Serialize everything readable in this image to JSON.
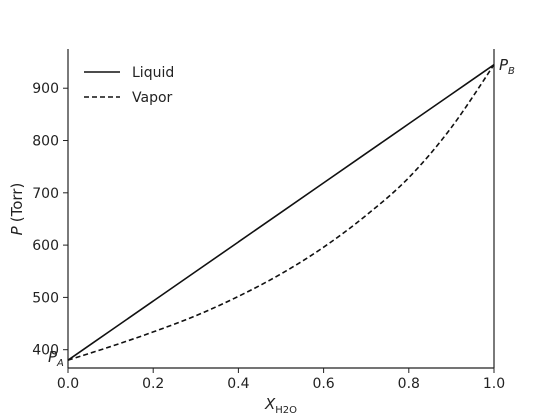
{
  "chart_data": {
    "type": "line",
    "xlabel": "X",
    "xlabel_sub": "H2O",
    "ylabel_italic": "P",
    "ylabel_unit": "(Torr)",
    "xlim": [
      0.0,
      1.0
    ],
    "ylim": [
      365,
      975
    ],
    "xticks": [
      "0.0",
      "0.2",
      "0.4",
      "0.6",
      "0.8",
      "1.0"
    ],
    "yticks": [
      "400",
      "500",
      "600",
      "700",
      "800",
      "900"
    ],
    "legend_position": "top-left",
    "annotations": [
      {
        "main": "P",
        "sub": "A"
      },
      {
        "main": "P",
        "sub": "B"
      }
    ],
    "series": [
      {
        "name": "Liquid",
        "style": "solid",
        "x": [
          0.0,
          0.1,
          0.2,
          0.3,
          0.4,
          0.5,
          0.6,
          0.7,
          0.8,
          0.9,
          1.0
        ],
        "y": [
          380,
          436.5,
          493,
          549.5,
          606,
          662.5,
          719,
          775.5,
          832,
          888.5,
          945
        ]
      },
      {
        "name": "Vapor",
        "style": "dashed",
        "x": [
          0.0,
          0.1,
          0.2,
          0.3,
          0.4,
          0.5,
          0.6,
          0.7,
          0.8,
          0.9,
          1.0
        ],
        "y": [
          380,
          406,
          434,
          465,
          502,
          545,
          596,
          657,
          729,
          825,
          945
        ]
      }
    ]
  }
}
